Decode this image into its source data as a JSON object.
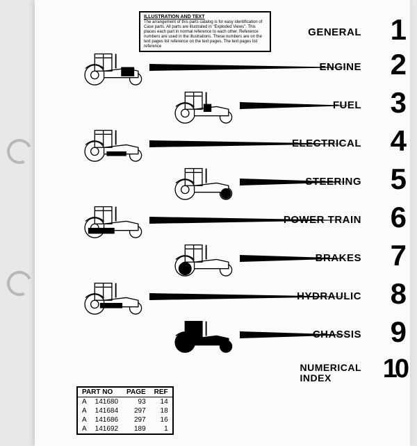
{
  "illus_box": {
    "title": "ILLUSTRATION AND TEXT",
    "body": "The arrangement of this parts catalog is for easy identification of Case parts. All parts are illustrated in \"Exploded Views\". This places each part in normal reference to each other. Reference numbers are used in the illustrations. These numbers are on the text pages list reference on the text pages. The text pages list reference"
  },
  "sections": [
    {
      "label": "GENERAL",
      "num": "1",
      "side": "none"
    },
    {
      "label": "ENGINE",
      "num": "2",
      "side": "left"
    },
    {
      "label": "FUEL",
      "num": "3",
      "side": "right"
    },
    {
      "label": "ELECTRICAL",
      "num": "4",
      "side": "left"
    },
    {
      "label": "STEERING",
      "num": "5",
      "side": "right"
    },
    {
      "label": "POWER TRAIN",
      "num": "6",
      "side": "left"
    },
    {
      "label": "BRAKES",
      "num": "7",
      "side": "right"
    },
    {
      "label": "HYDRAULIC",
      "num": "8",
      "side": "left"
    },
    {
      "label": "CHASSIS",
      "num": "9",
      "side": "right",
      "filled": true
    },
    {
      "label": "NUMERICAL",
      "label2": "INDEX",
      "num": "10",
      "side": "none"
    }
  ],
  "parts_table": {
    "headers": [
      "PART NO",
      "PAGE",
      "REF"
    ],
    "rows": [
      [
        "A",
        "141680",
        "93",
        "14"
      ],
      [
        "A",
        "141684",
        "297",
        "18"
      ],
      [
        "A",
        "141686",
        "297",
        "16"
      ],
      [
        "A",
        "141692",
        "189",
        "1"
      ]
    ]
  },
  "colors": {
    "ink": "#000000",
    "paper": "#fbfbfa"
  }
}
